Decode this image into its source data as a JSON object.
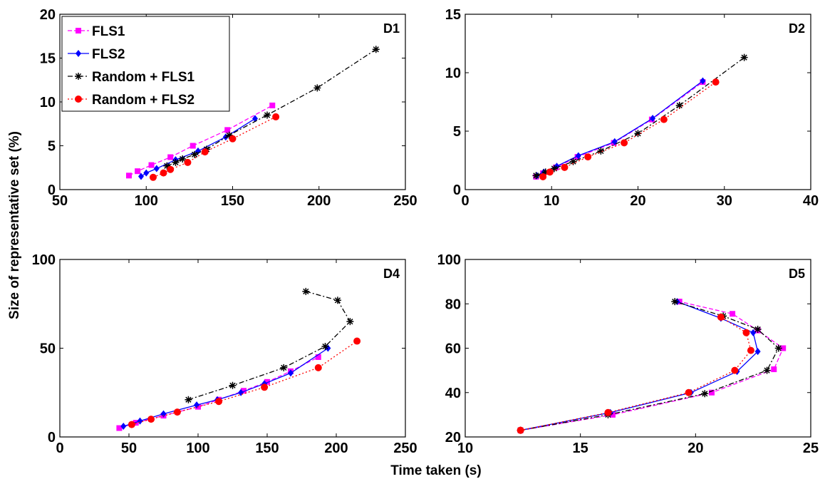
{
  "figure": {
    "ylabel": "Size of representative set (%)",
    "xlabel": "Time taken (s)"
  },
  "legend": {
    "entries": [
      "FLS1",
      "FLS2",
      "Random + FLS1",
      "Random + FLS2"
    ]
  },
  "styles": {
    "FLS1": {
      "color": "#ff00ff",
      "marker": "square",
      "dash": "dashed"
    },
    "FLS2": {
      "color": "#0000ff",
      "marker": "diamond",
      "dash": "solid"
    },
    "Random + FLS1": {
      "color": "#000000",
      "marker": "star",
      "dash": "dashdot"
    },
    "Random + FLS2": {
      "color": "#ff0000",
      "marker": "circle",
      "dash": "dotted"
    }
  },
  "chart_data": [
    {
      "type": "line",
      "title": "D1",
      "xlim": [
        50,
        250
      ],
      "ylim": [
        0,
        20
      ],
      "xticks": [
        50,
        100,
        150,
        200,
        250
      ],
      "yticks": [
        0,
        5,
        10,
        15,
        20
      ],
      "grid": false,
      "legend": "top-left",
      "series": [
        {
          "name": "FLS1",
          "x": [
            90,
            95,
            103,
            114,
            127,
            147,
            173
          ],
          "y": [
            1.6,
            2.1,
            2.8,
            3.7,
            5.0,
            6.8,
            9.6
          ]
        },
        {
          "name": "FLS2",
          "x": [
            97,
            100,
            106,
            117,
            130,
            146,
            163
          ],
          "y": [
            1.5,
            1.9,
            2.4,
            3.4,
            4.4,
            6.0,
            8.1
          ]
        },
        {
          "name": "Random + FLS1",
          "x": [
            112,
            117,
            121,
            128,
            135,
            148,
            170,
            199,
            233
          ],
          "y": [
            2.7,
            3.1,
            3.5,
            4.0,
            4.6,
            6.2,
            8.5,
            11.6,
            16.0
          ]
        },
        {
          "name": "Random + FLS2",
          "x": [
            104,
            110,
            114,
            124,
            134,
            150,
            175
          ],
          "y": [
            1.4,
            1.9,
            2.3,
            3.1,
            4.3,
            5.8,
            8.3
          ]
        }
      ]
    },
    {
      "type": "line",
      "title": "D2",
      "xlim": [
        0,
        40
      ],
      "ylim": [
        0,
        15
      ],
      "xticks": [
        0,
        10,
        20,
        30,
        40
      ],
      "yticks": [
        0,
        5,
        10,
        15
      ],
      "grid": false,
      "series": [
        {
          "name": "FLS1",
          "x": [
            8.2,
            9.0,
            10.5,
            13.0,
            17.2,
            21.6,
            27.5
          ],
          "y": [
            1.1,
            1.4,
            1.9,
            2.8,
            4.0,
            6.0,
            9.2
          ]
        },
        {
          "name": "FLS2",
          "x": [
            8.3,
            9.1,
            10.6,
            13.1,
            17.3,
            21.7,
            27.5
          ],
          "y": [
            1.2,
            1.5,
            2.0,
            2.9,
            4.1,
            6.1,
            9.3
          ]
        },
        {
          "name": "Random + FLS1",
          "x": [
            8.2,
            9.3,
            10.3,
            12.5,
            15.7,
            20.0,
            24.8,
            32.3
          ],
          "y": [
            1.2,
            1.5,
            1.8,
            2.4,
            3.3,
            4.8,
            7.2,
            11.3
          ]
        },
        {
          "name": "Random + FLS2",
          "x": [
            9.0,
            9.8,
            11.5,
            14.2,
            18.4,
            23.0,
            29.0
          ],
          "y": [
            1.1,
            1.5,
            1.9,
            2.8,
            4.0,
            6.0,
            9.2
          ]
        }
      ]
    },
    {
      "type": "line",
      "title": "D4",
      "xlim": [
        0,
        250
      ],
      "ylim": [
        0,
        100
      ],
      "xticks": [
        0,
        50,
        100,
        150,
        200,
        250
      ],
      "yticks": [
        0,
        50,
        100
      ],
      "grid": false,
      "series": [
        {
          "name": "FLS1",
          "x": [
            43,
            55,
            75,
            100,
            115,
            133,
            150,
            167,
            187
          ],
          "y": [
            5,
            8,
            12,
            17,
            21,
            26,
            31,
            37,
            45
          ]
        },
        {
          "name": "FLS2",
          "x": [
            46,
            58,
            75,
            99,
            114,
            131,
            148,
            167,
            194
          ],
          "y": [
            6,
            9,
            13,
            18,
            21,
            25,
            30,
            36,
            50
          ]
        },
        {
          "name": "Random + FLS1",
          "x": [
            93,
            125,
            162,
            192,
            210,
            201,
            178
          ],
          "y": [
            21,
            29,
            39,
            51,
            65,
            77,
            82
          ]
        },
        {
          "name": "Random + FLS2",
          "x": [
            52,
            66,
            85,
            115,
            148,
            187,
            215
          ],
          "y": [
            7,
            10,
            14,
            20,
            28,
            39,
            54
          ]
        }
      ]
    },
    {
      "type": "line",
      "title": "D5",
      "xlim": [
        10,
        25
      ],
      "ylim": [
        20,
        100
      ],
      "xticks": [
        10,
        15,
        20,
        25
      ],
      "yticks": [
        20,
        40,
        60,
        80,
        100
      ],
      "grid": false,
      "series": [
        {
          "name": "FLS1",
          "x": [
            12.4,
            16.4,
            20.7,
            23.4,
            23.8,
            22.7,
            21.6,
            19.3
          ],
          "y": [
            23,
            30,
            40,
            50.5,
            60,
            68,
            75.5,
            81
          ]
        },
        {
          "name": "FLS2",
          "x": [
            12.4,
            16.3,
            19.8,
            21.8,
            22.7,
            22.5,
            21.1,
            19.2
          ],
          "y": [
            23,
            31,
            40,
            49.5,
            58.5,
            67,
            73.5,
            81
          ]
        },
        {
          "name": "Random + FLS1",
          "x": [
            12.4,
            16.2,
            20.4,
            23.1,
            23.6,
            22.7,
            21.2,
            19.1
          ],
          "y": [
            23,
            30,
            39.5,
            50,
            60,
            68.5,
            74.5,
            81
          ]
        },
        {
          "name": "Random + FLS2",
          "x": [
            12.4,
            16.2,
            19.7,
            21.7,
            22.4,
            22.2,
            21.1
          ],
          "y": [
            23,
            31,
            40,
            50,
            59,
            67,
            74
          ]
        }
      ]
    }
  ]
}
